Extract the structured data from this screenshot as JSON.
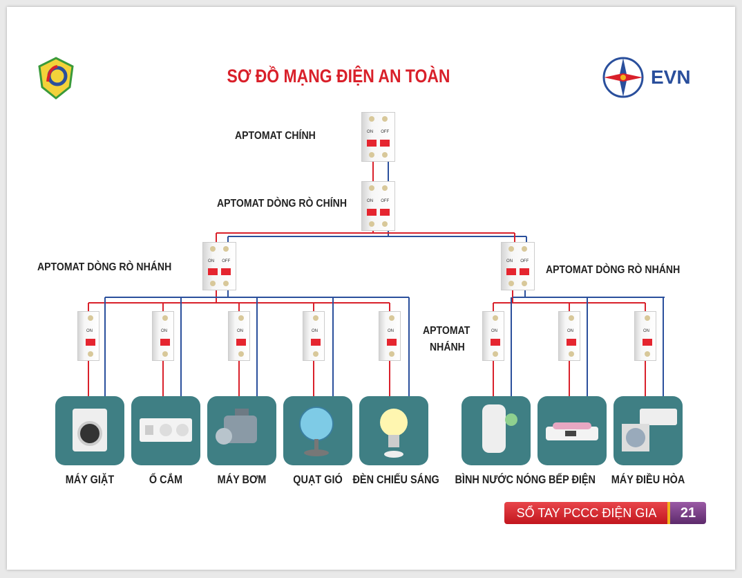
{
  "title": "SƠ ĐỒ MẠNG ĐIỆN AN TOÀN",
  "logo_left": "fire-police-emblem",
  "logo_right": {
    "text": "EVN"
  },
  "labels": {
    "main": "APTOMAT CHÍNH",
    "main_rcd": "APTOMAT DÒNG RÒ CHÍNH",
    "branch_rcd_left": "APTOMAT DÒNG RÒ NHÁNH",
    "branch_rcd_right": "APTOMAT DÒNG RÒ NHÁNH",
    "branch_line1": "APTOMAT",
    "branch_line2": "NHÁNH"
  },
  "breaker_text": {
    "on": "ON",
    "off": "OFF"
  },
  "devices": [
    {
      "label": "MÁY GIẶT",
      "icon": "washing-machine-icon"
    },
    {
      "label": "Ổ CẮM",
      "icon": "socket-icon"
    },
    {
      "label": "MÁY BƠM",
      "icon": "pump-icon"
    },
    {
      "label": "QUẠT GIÓ",
      "icon": "fan-icon"
    },
    {
      "label": "ĐÈN CHIẾU SÁNG",
      "icon": "light-bulb-icon"
    },
    {
      "label": "BÌNH NƯỚC NÓNG",
      "icon": "water-heater-icon"
    },
    {
      "label": "BẾP ĐIỆN",
      "icon": "electric-stove-icon"
    },
    {
      "label": "MÁY ĐIỀU HÒA",
      "icon": "air-conditioner-icon"
    }
  ],
  "footer": {
    "text": "SỔ TAY PCCC ĐIỆN GIA ĐÌNH",
    "page": "21"
  },
  "colors": {
    "live": "#d9202a",
    "neutral": "#2a4f9c",
    "tile": "#3f7f84",
    "title": "#d9202a"
  }
}
